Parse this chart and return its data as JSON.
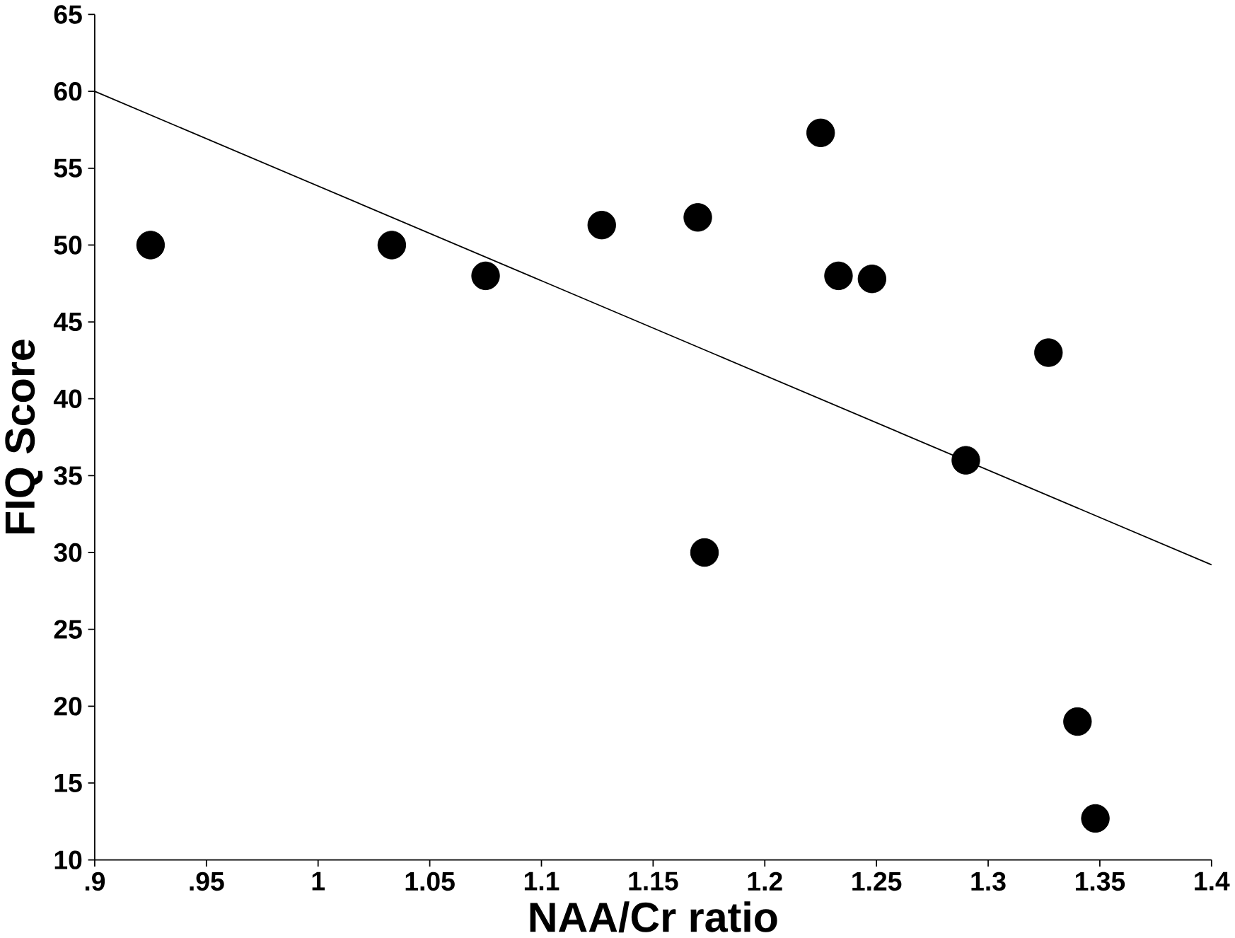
{
  "chart_data": {
    "type": "scatter",
    "xlabel": "NAA/Cr ratio",
    "ylabel": "FIQ Score",
    "xlim": [
      0.9,
      1.4
    ],
    "ylim": [
      10,
      65
    ],
    "xticks": [
      {
        "value": 0.9,
        "label": ".9"
      },
      {
        "value": 0.95,
        "label": ".95"
      },
      1,
      1.05,
      1.1,
      1.15,
      1.2,
      1.25,
      1.3,
      1.35,
      1.4
    ],
    "yticks": [
      10,
      15,
      20,
      25,
      30,
      35,
      40,
      45,
      50,
      55,
      60,
      65
    ],
    "grid": false,
    "series": [
      {
        "color": "#000000",
        "marker": "circle",
        "x": [
          0.925,
          1.033,
          1.075,
          1.127,
          1.17,
          1.173,
          1.225,
          1.233,
          1.248,
          1.29,
          1.327,
          1.34,
          1.348
        ],
        "values": [
          50,
          50,
          48,
          51.3,
          51.8,
          30,
          57.3,
          48,
          47.8,
          36,
          43,
          19,
          12.7
        ]
      },
      {
        "type": "line",
        "color": "#000000",
        "marker": "none",
        "x": [
          0.9,
          1.4
        ],
        "values": [
          60,
          29.2
        ]
      }
    ]
  }
}
